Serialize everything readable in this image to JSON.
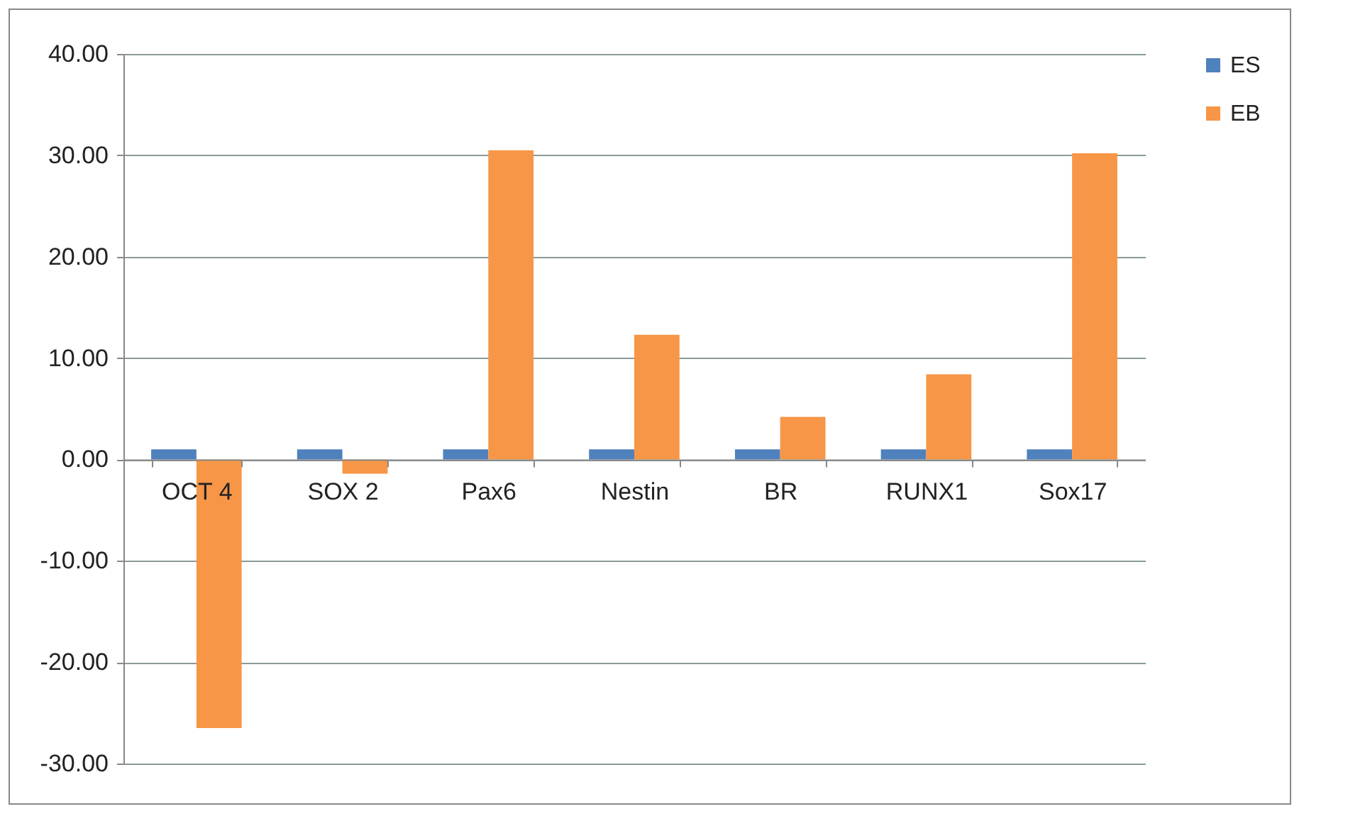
{
  "chart_data": {
    "type": "bar",
    "categories": [
      "OCT 4",
      "SOX 2",
      "Pax6",
      "Nestin",
      "BR",
      "RUNX1",
      "Sox17"
    ],
    "series": [
      {
        "name": "ES",
        "color": "#4f81bd",
        "values": [
          1.0,
          1.0,
          1.0,
          1.0,
          1.0,
          1.0,
          1.0
        ]
      },
      {
        "name": "EB",
        "color": "#f79646",
        "values": [
          -26.5,
          -1.4,
          30.5,
          12.3,
          4.2,
          8.4,
          30.2
        ]
      }
    ],
    "ylim": [
      -30,
      40
    ],
    "yticks": [
      {
        "value": -30,
        "label": "-30.00"
      },
      {
        "value": -20,
        "label": "-20.00"
      },
      {
        "value": -10,
        "label": "-10.00"
      },
      {
        "value": 0,
        "label": "0.00"
      },
      {
        "value": 10,
        "label": "10.00"
      },
      {
        "value": 20,
        "label": "20.00"
      },
      {
        "value": 30,
        "label": "30.00"
      },
      {
        "value": 40,
        "label": "40.00"
      }
    ],
    "grid": "y",
    "legend": "right"
  }
}
